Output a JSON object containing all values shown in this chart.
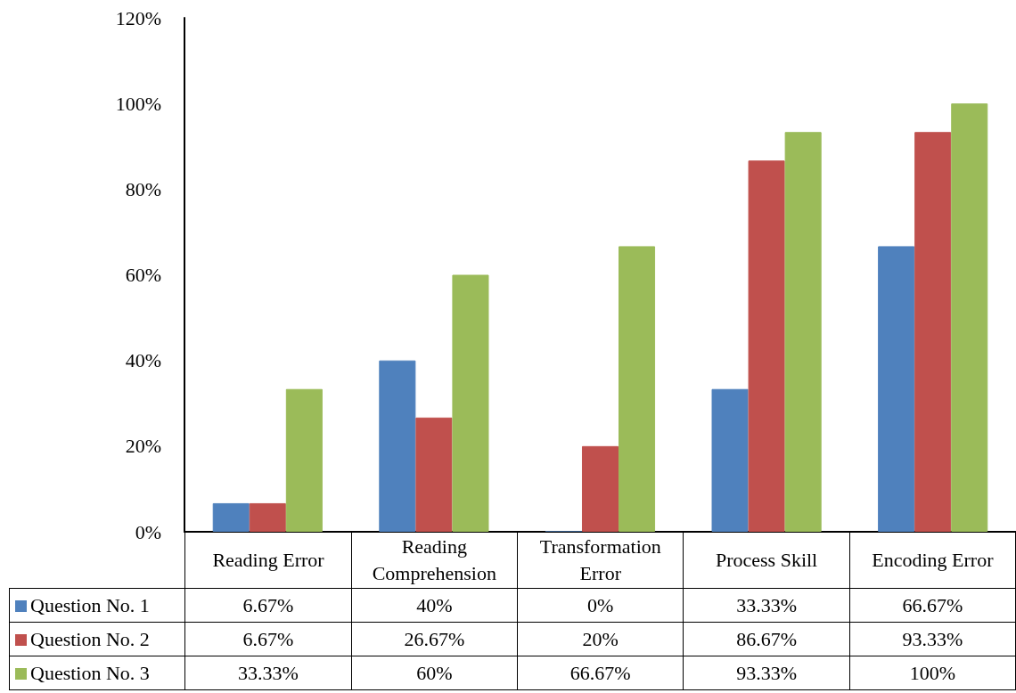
{
  "chart_data": {
    "type": "bar",
    "categories": [
      "Reading Error",
      "Reading Comprehension",
      "Transformation Error",
      "Process Skill",
      "Encoding Error"
    ],
    "series": [
      {
        "name": "Question No. 1",
        "color": "#4f81bd",
        "values": [
          6.67,
          40,
          0,
          33.33,
          66.67
        ],
        "value_labels": [
          "6.67%",
          "40%",
          "0%",
          "33.33%",
          "66.67%"
        ]
      },
      {
        "name": "Question No. 2",
        "color": "#c0504d",
        "values": [
          6.67,
          26.67,
          20,
          86.67,
          93.33
        ],
        "value_labels": [
          "6.67%",
          "26.67%",
          "20%",
          "86.67%",
          "93.33%"
        ]
      },
      {
        "name": "Question No. 3",
        "color": "#9bbb59",
        "values": [
          33.33,
          60,
          66.67,
          93.33,
          100
        ],
        "value_labels": [
          "33.33%",
          "60%",
          "66.67%",
          "93.33%",
          "100%"
        ]
      }
    ],
    "ylim": [
      0,
      120
    ],
    "yticks": [
      {
        "value": 0,
        "label": "0%"
      },
      {
        "value": 20,
        "label": "20%"
      },
      {
        "value": 40,
        "label": "40%"
      },
      {
        "value": 60,
        "label": "60%"
      },
      {
        "value": 80,
        "label": "80%"
      },
      {
        "value": 100,
        "label": "100%"
      },
      {
        "value": 120,
        "label": "120%"
      }
    ],
    "grid": false,
    "legend": "bottom left"
  }
}
